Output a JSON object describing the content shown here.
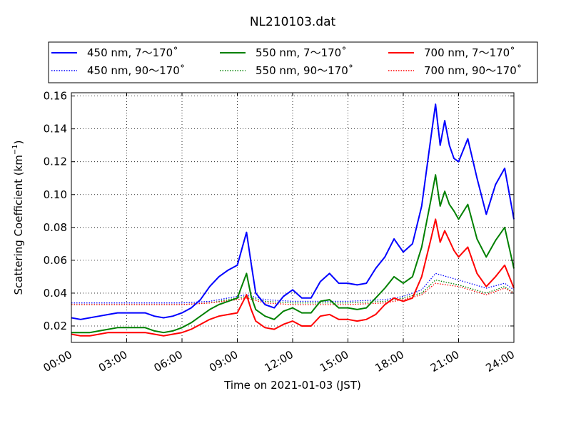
{
  "chart_data": {
    "type": "line",
    "title": "NL210103.dat",
    "xlabel": "Time on 2021-01-03 (JST)",
    "ylabel": "Scattering Coefficient (km",
    "ylabel_sup": "−1",
    "ylabel_close": ")",
    "xlim": [
      "00:00",
      "24:00"
    ],
    "ylim": [
      0.01,
      0.162
    ],
    "grid": true,
    "legend_position": "top",
    "x_tick_labels": [
      "00:00",
      "03:00",
      "06:00",
      "09:00",
      "12:00",
      "15:00",
      "18:00",
      "21:00",
      "24:00"
    ],
    "y_ticks": [
      0.02,
      0.04,
      0.06,
      0.08,
      0.1,
      0.12,
      0.14,
      0.16
    ],
    "y_tick_labels": [
      "0.02",
      "0.04",
      "0.06",
      "0.08",
      "0.10",
      "0.12",
      "0.14",
      "0.16"
    ],
    "series": [
      {
        "name": "450 nm, 7～170˚",
        "color": "#0000ff",
        "style": "solid",
        "x": [
          "00:00",
          "00:30",
          "01:00",
          "01:30",
          "02:00",
          "02:30",
          "03:00",
          "03:30",
          "04:00",
          "04:30",
          "05:00",
          "05:30",
          "06:00",
          "06:30",
          "07:00",
          "07:30",
          "08:00",
          "08:30",
          "09:00",
          "09:30",
          "09:45",
          "10:00",
          "10:30",
          "11:00",
          "11:30",
          "12:00",
          "12:30",
          "13:00",
          "13:30",
          "14:00",
          "14:30",
          "15:00",
          "15:30",
          "16:00",
          "16:30",
          "17:00",
          "17:30",
          "18:00",
          "18:30",
          "19:00",
          "19:30",
          "19:45",
          "20:00",
          "20:15",
          "20:30",
          "20:45",
          "21:00",
          "21:30",
          "22:00",
          "22:30",
          "23:00",
          "23:30",
          "24:00"
        ],
        "values": [
          0.025,
          0.024,
          0.025,
          0.026,
          0.027,
          0.028,
          0.028,
          0.028,
          0.028,
          0.026,
          0.025,
          0.026,
          0.028,
          0.031,
          0.036,
          0.044,
          0.05,
          0.054,
          0.057,
          0.077,
          0.058,
          0.04,
          0.033,
          0.031,
          0.038,
          0.042,
          0.037,
          0.037,
          0.047,
          0.052,
          0.046,
          0.046,
          0.045,
          0.046,
          0.055,
          0.062,
          0.073,
          0.065,
          0.07,
          0.093,
          0.135,
          0.155,
          0.13,
          0.145,
          0.13,
          0.122,
          0.12,
          0.134,
          0.11,
          0.088,
          0.106,
          0.116,
          0.085
        ]
      },
      {
        "name": "450 nm, 90～170˚",
        "color": "#0000ff",
        "style": "dotted",
        "x": [
          "00:00",
          "03:00",
          "06:00",
          "07:30",
          "09:00",
          "09:30",
          "10:30",
          "12:00",
          "15:00",
          "17:00",
          "18:00",
          "19:00",
          "19:45",
          "21:00",
          "22:30",
          "23:30",
          "24:00"
        ],
        "values": [
          0.034,
          0.034,
          0.034,
          0.035,
          0.038,
          0.039,
          0.036,
          0.035,
          0.035,
          0.036,
          0.038,
          0.042,
          0.052,
          0.048,
          0.043,
          0.046,
          0.042
        ]
      },
      {
        "name": "550 nm, 7～170˚",
        "color": "#008000",
        "style": "solid",
        "x": [
          "00:00",
          "00:30",
          "01:00",
          "01:30",
          "02:00",
          "02:30",
          "03:00",
          "03:30",
          "04:00",
          "04:30",
          "05:00",
          "05:30",
          "06:00",
          "06:30",
          "07:00",
          "07:30",
          "08:00",
          "08:30",
          "09:00",
          "09:30",
          "09:45",
          "10:00",
          "10:30",
          "11:00",
          "11:30",
          "12:00",
          "12:30",
          "13:00",
          "13:30",
          "14:00",
          "14:30",
          "15:00",
          "15:30",
          "16:00",
          "16:30",
          "17:00",
          "17:30",
          "18:00",
          "18:30",
          "19:00",
          "19:30",
          "19:45",
          "20:00",
          "20:15",
          "20:30",
          "20:45",
          "21:00",
          "21:30",
          "22:00",
          "22:30",
          "23:00",
          "23:30",
          "24:00"
        ],
        "values": [
          0.016,
          0.016,
          0.016,
          0.017,
          0.018,
          0.019,
          0.019,
          0.019,
          0.019,
          0.017,
          0.016,
          0.017,
          0.019,
          0.022,
          0.026,
          0.03,
          0.033,
          0.035,
          0.037,
          0.052,
          0.038,
          0.03,
          0.026,
          0.024,
          0.029,
          0.031,
          0.028,
          0.028,
          0.035,
          0.036,
          0.031,
          0.031,
          0.03,
          0.031,
          0.037,
          0.043,
          0.05,
          0.046,
          0.05,
          0.068,
          0.097,
          0.112,
          0.093,
          0.102,
          0.094,
          0.09,
          0.085,
          0.094,
          0.073,
          0.062,
          0.072,
          0.08,
          0.055
        ]
      },
      {
        "name": "550 nm, 90～170˚",
        "color": "#008000",
        "style": "dotted",
        "x": [
          "00:00",
          "03:00",
          "06:00",
          "07:30",
          "09:00",
          "09:30",
          "10:30",
          "12:00",
          "15:00",
          "17:00",
          "18:00",
          "19:00",
          "19:45",
          "21:00",
          "22:30",
          "23:30",
          "24:00"
        ],
        "values": [
          0.033,
          0.033,
          0.033,
          0.034,
          0.037,
          0.038,
          0.035,
          0.034,
          0.034,
          0.035,
          0.037,
          0.04,
          0.048,
          0.045,
          0.04,
          0.044,
          0.04
        ]
      },
      {
        "name": "700 nm, 7～170˚",
        "color": "#ff0000",
        "style": "solid",
        "x": [
          "00:00",
          "00:30",
          "01:00",
          "01:30",
          "02:00",
          "02:30",
          "03:00",
          "03:30",
          "04:00",
          "04:30",
          "05:00",
          "05:30",
          "06:00",
          "06:30",
          "07:00",
          "07:30",
          "08:00",
          "08:30",
          "09:00",
          "09:30",
          "09:45",
          "10:00",
          "10:30",
          "11:00",
          "11:30",
          "12:00",
          "12:30",
          "13:00",
          "13:30",
          "14:00",
          "14:30",
          "15:00",
          "15:30",
          "16:00",
          "16:30",
          "17:00",
          "17:30",
          "18:00",
          "18:30",
          "19:00",
          "19:30",
          "19:45",
          "20:00",
          "20:15",
          "20:30",
          "20:45",
          "21:00",
          "21:30",
          "22:00",
          "22:30",
          "23:00",
          "23:30",
          "24:00"
        ],
        "values": [
          0.015,
          0.014,
          0.014,
          0.015,
          0.016,
          0.016,
          0.016,
          0.016,
          0.016,
          0.015,
          0.014,
          0.015,
          0.016,
          0.018,
          0.021,
          0.024,
          0.026,
          0.027,
          0.028,
          0.039,
          0.03,
          0.023,
          0.019,
          0.018,
          0.021,
          0.023,
          0.02,
          0.02,
          0.026,
          0.027,
          0.024,
          0.024,
          0.023,
          0.024,
          0.027,
          0.033,
          0.037,
          0.035,
          0.037,
          0.05,
          0.073,
          0.085,
          0.071,
          0.078,
          0.072,
          0.066,
          0.062,
          0.068,
          0.052,
          0.044,
          0.05,
          0.057,
          0.043
        ]
      },
      {
        "name": "700 nm, 90～170˚",
        "color": "#ff0000",
        "style": "dotted",
        "x": [
          "00:00",
          "03:00",
          "06:00",
          "07:30",
          "09:00",
          "09:30",
          "10:30",
          "12:00",
          "15:00",
          "17:00",
          "18:00",
          "19:00",
          "19:45",
          "21:00",
          "22:30",
          "23:30",
          "24:00"
        ],
        "values": [
          0.033,
          0.033,
          0.033,
          0.034,
          0.036,
          0.037,
          0.034,
          0.033,
          0.033,
          0.034,
          0.036,
          0.039,
          0.046,
          0.044,
          0.039,
          0.043,
          0.04
        ]
      }
    ]
  }
}
